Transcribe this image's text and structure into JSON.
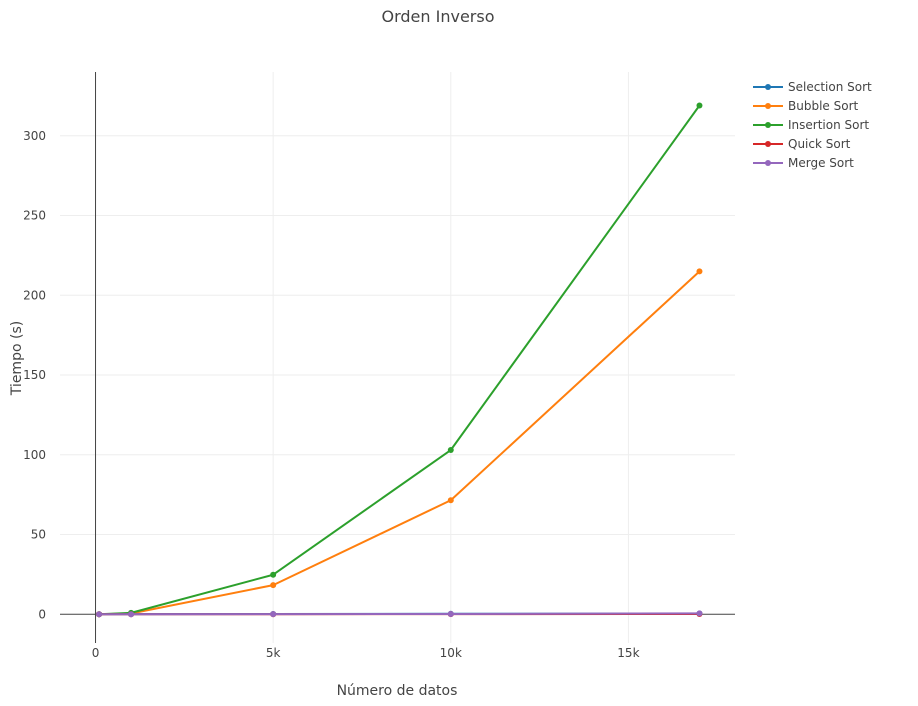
{
  "chart_data": {
    "type": "line",
    "title": "Orden Inverso",
    "xlabel": "Número de datos",
    "ylabel": "Tiempo (s)",
    "xlim": [
      -1000,
      18000
    ],
    "ylim": [
      -18,
      340
    ],
    "x_ticks": [
      0,
      5000,
      10000,
      15000
    ],
    "x_tick_labels": [
      "0",
      "5k",
      "10k",
      "15k"
    ],
    "y_ticks": [
      0,
      50,
      100,
      150,
      200,
      250,
      300
    ],
    "y_tick_labels": [
      "0",
      "50",
      "100",
      "150",
      "200",
      "250",
      "300"
    ],
    "grid": true,
    "legend_position": "top-right",
    "x": [
      100,
      1000,
      5000,
      10000,
      17000
    ],
    "series": [
      {
        "name": "Selection Sort",
        "color": "#1f77b4",
        "values": [
          0.0,
          0.1,
          0.2,
          0.3,
          0.5
        ]
      },
      {
        "name": "Bubble Sort",
        "color": "#ff7f0e",
        "values": [
          0.0,
          0.5,
          18.3,
          71.5,
          215
        ]
      },
      {
        "name": "Insertion Sort",
        "color": "#2ca02c",
        "values": [
          0.0,
          0.9,
          24.8,
          103,
          319
        ]
      },
      {
        "name": "Quick Sort",
        "color": "#d62728",
        "values": [
          0.0,
          0.0,
          0.05,
          0.1,
          0.2
        ]
      },
      {
        "name": "Merge Sort",
        "color": "#9467bd",
        "values": [
          0.0,
          0.0,
          0.1,
          0.2,
          0.6
        ]
      }
    ]
  }
}
